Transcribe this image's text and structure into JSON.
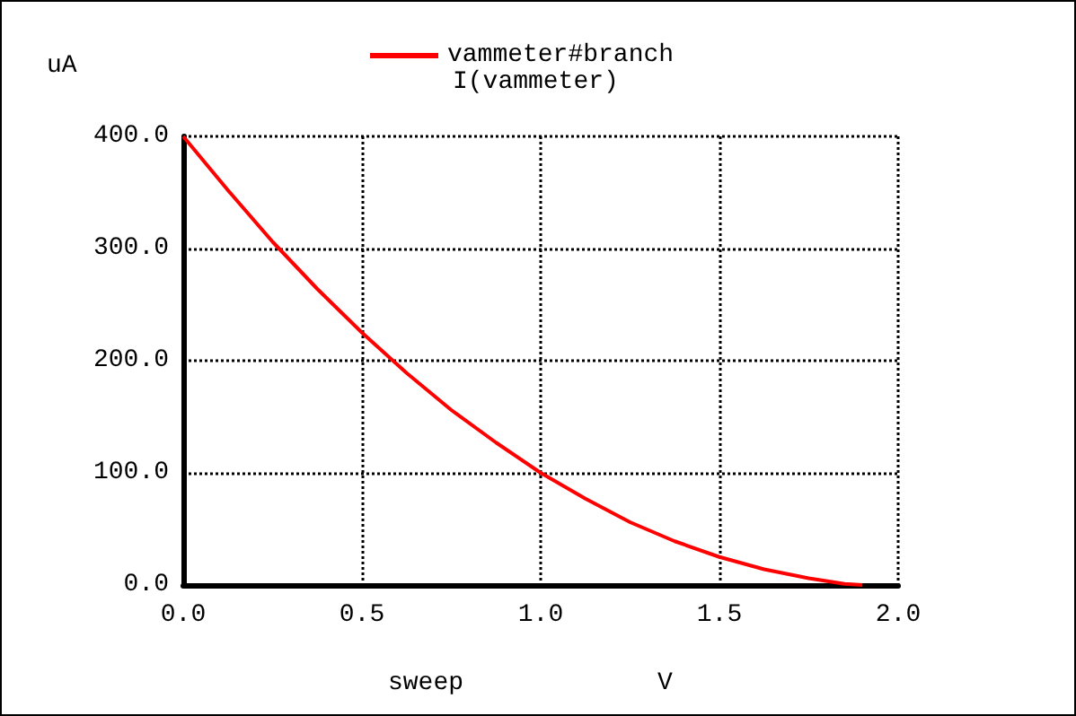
{
  "chart_data": {
    "type": "line",
    "subtitle": "I(vammeter)",
    "xlabel": "sweep",
    "ylabel": "uA",
    "annotations": [
      "V"
    ],
    "x": [
      0,
      0.125,
      0.25,
      0.375,
      0.5,
      0.625,
      0.75,
      0.875,
      1.0,
      1.125,
      1.25,
      1.375,
      1.5,
      1.625,
      1.75,
      1.85,
      1.9
    ],
    "series": [
      {
        "name": "vammeter#branch",
        "color": "#ff0000",
        "values": [
          400,
          352,
          306,
          264,
          225,
          189,
          156,
          127,
          100,
          77,
          56,
          39,
          25,
          14,
          6,
          1,
          0
        ]
      }
    ],
    "xlim": [
      0,
      2
    ],
    "ylim": [
      0,
      400
    ],
    "xticks": [
      {
        "value": 0,
        "label": "0.0"
      },
      {
        "value": 0.5,
        "label": "0.5"
      },
      {
        "value": 1,
        "label": "1.0"
      },
      {
        "value": 1.5,
        "label": "1.5"
      },
      {
        "value": 2,
        "label": "2.0"
      }
    ],
    "yticks": [
      {
        "value": 0,
        "label": "0.0"
      },
      {
        "value": 100,
        "label": "100.0"
      },
      {
        "value": 200,
        "label": "200.0"
      },
      {
        "value": 300,
        "label": "300.0"
      },
      {
        "value": 400,
        "label": "400.0"
      }
    ],
    "grid": true,
    "legend": "top",
    "marker": "none",
    "line_style": "solid"
  }
}
